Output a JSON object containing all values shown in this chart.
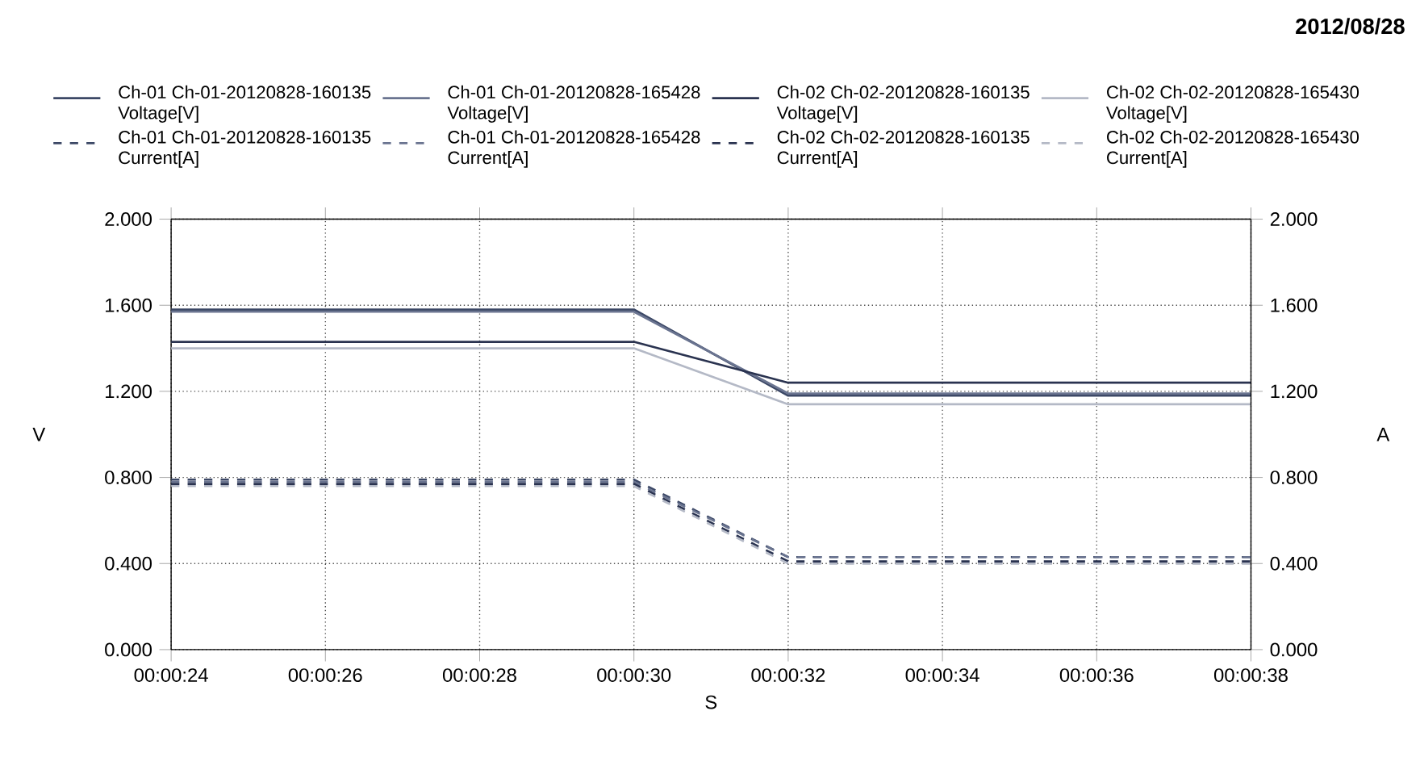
{
  "chart_data": {
    "type": "line",
    "annotations": [
      "2012/08/28"
    ],
    "xlabel": "S",
    "ylabel": "V",
    "y2label": "A",
    "x": [
      24,
      30,
      32,
      38
    ],
    "xlim": [
      24,
      38
    ],
    "xticks": [
      {
        "value": 24,
        "label": "00:00:24"
      },
      {
        "value": 26,
        "label": "00:00:26"
      },
      {
        "value": 28,
        "label": "00:00:28"
      },
      {
        "value": 30,
        "label": "00:00:30"
      },
      {
        "value": 32,
        "label": "00:00:32"
      },
      {
        "value": 34,
        "label": "00:00:34"
      },
      {
        "value": 36,
        "label": "00:00:36"
      },
      {
        "value": 38,
        "label": "00:00:38"
      }
    ],
    "ylim": [
      0,
      2
    ],
    "yticks": [
      {
        "value": 0,
        "label": "0.000"
      },
      {
        "value": 0.4,
        "label": "0.400"
      },
      {
        "value": 0.8,
        "label": "0.800"
      },
      {
        "value": 1.2,
        "label": "1.200"
      },
      {
        "value": 1.6,
        "label": "1.600"
      },
      {
        "value": 2,
        "label": "2.000"
      }
    ],
    "y2lim": [
      0,
      2
    ],
    "y2ticks": [
      {
        "value": 0,
        "label": "0.000"
      },
      {
        "value": 0.4,
        "label": "0.400"
      },
      {
        "value": 0.8,
        "label": "0.800"
      },
      {
        "value": 1.2,
        "label": "1.200"
      },
      {
        "value": 1.6,
        "label": "1.600"
      },
      {
        "value": 2,
        "label": "2.000"
      }
    ],
    "grid": true,
    "legend": "top",
    "line_style": "solid",
    "series": [
      {
        "name": "Ch-01 Ch-01-20120828-160135 Voltage[V]",
        "color": "#3c4866",
        "values": [
          1.58,
          1.58,
          1.18,
          1.18
        ]
      },
      {
        "name": "Ch-01 Ch-01-20120828-165428 Voltage[V]",
        "color": "#6a7490",
        "values": [
          1.57,
          1.57,
          1.19,
          1.19
        ]
      },
      {
        "name": "Ch-02 Ch-02-20120828-160135 Voltage[V]",
        "color": "#2a3350",
        "values": [
          1.43,
          1.43,
          1.24,
          1.24
        ]
      },
      {
        "name": "Ch-02 Ch-02-20120828-165430 Voltage[V]",
        "color": "#b4b9c6",
        "values": [
          1.4,
          1.4,
          1.14,
          1.14
        ]
      },
      {
        "name": "Ch-01 Ch-01-20120828-160135 Current[A]",
        "color": "#3c4866",
        "values": [
          0.79,
          0.79,
          0.43,
          0.43
        ],
        "axis": "y2",
        "line_style": "dashed"
      },
      {
        "name": "Ch-01 Ch-01-20120828-165428 Current[A]",
        "color": "#6a7490",
        "values": [
          0.78,
          0.78,
          0.43,
          0.43
        ],
        "axis": "y2",
        "line_style": "dashed"
      },
      {
        "name": "Ch-02 Ch-02-20120828-160135 Current[A]",
        "color": "#2a3350",
        "values": [
          0.77,
          0.77,
          0.41,
          0.41
        ],
        "axis": "y2",
        "line_style": "dashed"
      },
      {
        "name": "Ch-02 Ch-02-20120828-165430 Current[A]",
        "color": "#b4b9c6",
        "values": [
          0.76,
          0.76,
          0.4,
          0.4
        ],
        "axis": "y2",
        "line_style": "dashed"
      }
    ]
  }
}
